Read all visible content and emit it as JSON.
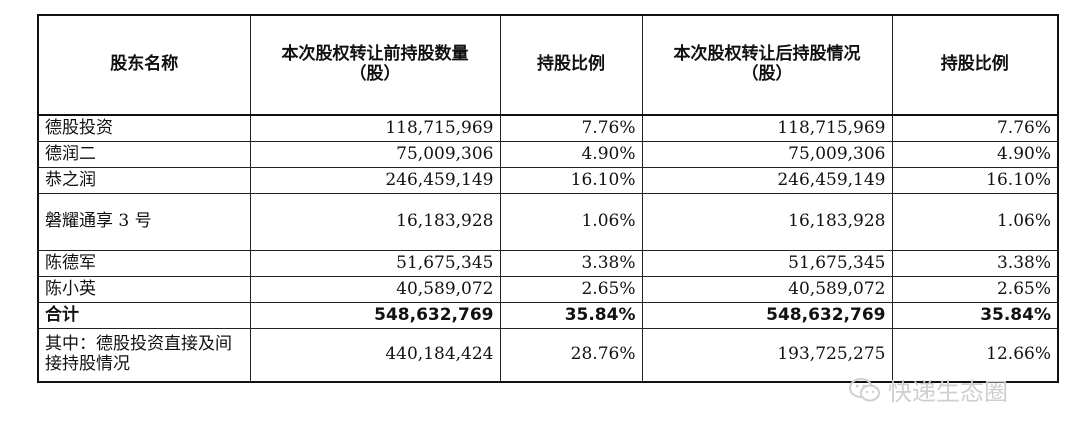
{
  "table": {
    "headers": [
      "股东名称",
      "本次股权转让前持股数量（股）",
      "持股比例",
      "本次股权转让后持股情况（股）",
      "持股比例"
    ],
    "rows": [
      {
        "name": "德股投资",
        "before": "118,715,969",
        "before_pct": "7.76%",
        "after": "118,715,969",
        "after_pct": "7.76%"
      },
      {
        "name": "德润二",
        "before": "75,009,306",
        "before_pct": "4.90%",
        "after": "75,009,306",
        "after_pct": "4.90%"
      },
      {
        "name": "恭之润",
        "before": "246,459,149",
        "before_pct": "16.10%",
        "after": "246,459,149",
        "after_pct": "16.10%"
      },
      {
        "name": "磐耀通享 3 号",
        "before": "16,183,928",
        "before_pct": "1.06%",
        "after": "16,183,928",
        "after_pct": "1.06%"
      },
      {
        "name": "陈德军",
        "before": "51,675,345",
        "before_pct": "3.38%",
        "after": "51,675,345",
        "after_pct": "3.38%"
      },
      {
        "name": "陈小英",
        "before": "40,589,072",
        "before_pct": "2.65%",
        "after": "40,589,072",
        "after_pct": "2.65%"
      }
    ],
    "total": {
      "name": "合计",
      "before": "548,632,769",
      "before_pct": "35.84%",
      "after": "548,632,769",
      "after_pct": "35.84%"
    },
    "note": {
      "name": "其中：德股投资直接及间接持股情况",
      "before": "440,184,424",
      "before_pct": "28.76%",
      "after": "193,725,275",
      "after_pct": "12.66%"
    }
  },
  "watermark": {
    "text": "快递生态圈",
    "icon": "wechat-icon"
  }
}
